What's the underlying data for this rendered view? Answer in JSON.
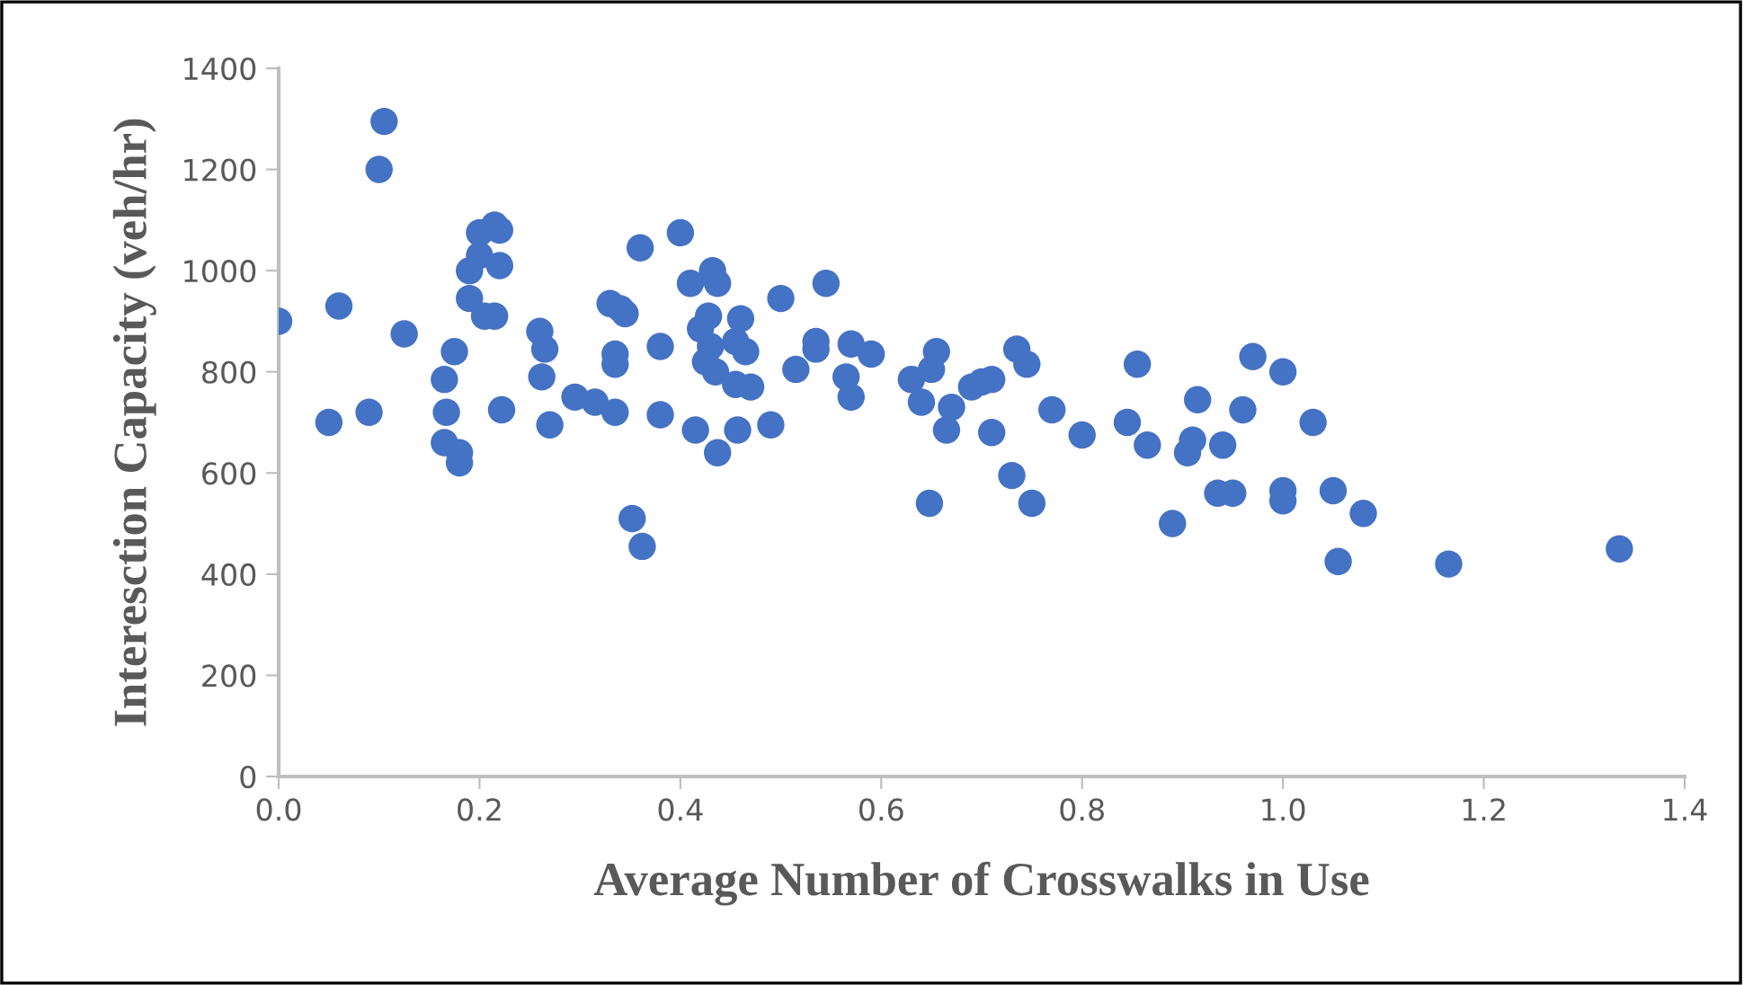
{
  "chart_data": {
    "type": "scatter",
    "xlabel": "Average Number of Crosswalks in Use",
    "ylabel": "Interesction Capacity (veh/hr)",
    "marker": "circle",
    "grid": false,
    "legend": false,
    "xlim": [
      0,
      1.4
    ],
    "ylim": [
      0,
      1400
    ],
    "xticks": [
      {
        "value": 0,
        "label": "0.0"
      },
      {
        "value": 0.2,
        "label": "0.2"
      },
      {
        "value": 0.4,
        "label": "0.4"
      },
      {
        "value": 0.6,
        "label": "0.6"
      },
      {
        "value": 0.8,
        "label": "0.8"
      },
      {
        "value": 1.0,
        "label": "1.0"
      },
      {
        "value": 1.2,
        "label": "1.2"
      },
      {
        "value": 1.4,
        "label": "1.4"
      }
    ],
    "yticks": [
      0,
      200,
      400,
      600,
      800,
      1000,
      1200,
      1400
    ],
    "series": [
      {
        "color": "#4472c4",
        "x": [
          0.0,
          0.05,
          0.06,
          0.09,
          0.1,
          0.105,
          0.125,
          0.165,
          0.165,
          0.167,
          0.175,
          0.18,
          0.18,
          0.19,
          0.19,
          0.2,
          0.2,
          0.205,
          0.215,
          0.215,
          0.22,
          0.22,
          0.222,
          0.26,
          0.262,
          0.265,
          0.27,
          0.295,
          0.315,
          0.33,
          0.335,
          0.335,
          0.335,
          0.34,
          0.345,
          0.352,
          0.36,
          0.362,
          0.38,
          0.38,
          0.4,
          0.41,
          0.415,
          0.42,
          0.425,
          0.428,
          0.43,
          0.432,
          0.435,
          0.437,
          0.437,
          0.455,
          0.455,
          0.457,
          0.46,
          0.465,
          0.47,
          0.49,
          0.5,
          0.515,
          0.535,
          0.535,
          0.545,
          0.565,
          0.57,
          0.57,
          0.59,
          0.63,
          0.64,
          0.648,
          0.65,
          0.655,
          0.665,
          0.67,
          0.69,
          0.7,
          0.71,
          0.71,
          0.73,
          0.735,
          0.745,
          0.75,
          0.77,
          0.8,
          0.845,
          0.855,
          0.865,
          0.89,
          0.905,
          0.91,
          0.915,
          0.935,
          0.94,
          0.95,
          0.96,
          0.97,
          1.0,
          1.0,
          1.0,
          1.03,
          1.05,
          1.055,
          1.08,
          1.165,
          1.335
        ],
        "values": [
          900,
          700,
          930,
          720,
          1200,
          1295,
          875,
          660,
          785,
          720,
          840,
          640,
          620,
          1000,
          945,
          1030,
          1075,
          910,
          910,
          1090,
          1010,
          1080,
          725,
          880,
          790,
          845,
          695,
          750,
          740,
          935,
          720,
          815,
          835,
          925,
          915,
          510,
          1045,
          455,
          850,
          715,
          1075,
          975,
          685,
          885,
          820,
          910,
          850,
          1000,
          800,
          975,
          640,
          860,
          775,
          685,
          905,
          840,
          770,
          695,
          945,
          805,
          860,
          845,
          975,
          790,
          750,
          855,
          835,
          785,
          740,
          540,
          805,
          840,
          685,
          730,
          770,
          780,
          785,
          680,
          595,
          845,
          815,
          540,
          725,
          675,
          700,
          815,
          655,
          500,
          640,
          665,
          745,
          560,
          655,
          560,
          725,
          830,
          800,
          565,
          545,
          700,
          565,
          425,
          520,
          420,
          450
        ]
      }
    ]
  }
}
